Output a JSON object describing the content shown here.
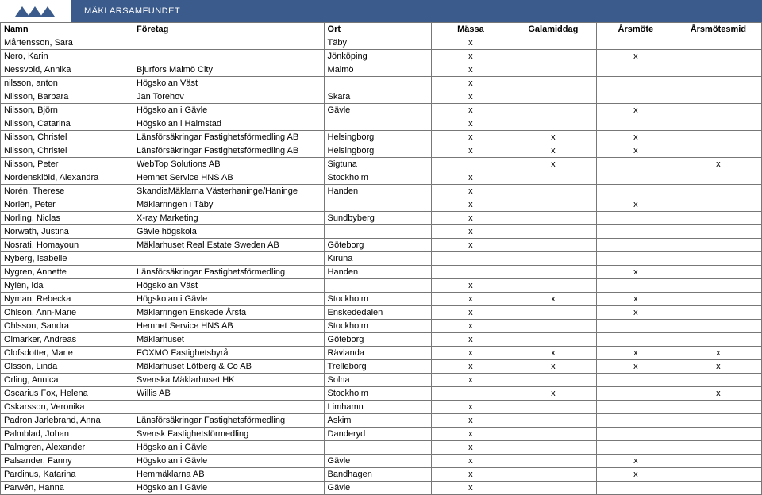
{
  "brand": "MÄKLARSAMFUNDET",
  "columns": [
    "Namn",
    "Företag",
    "Ort",
    "Mässa",
    "Galamiddag",
    "Årsmöte",
    "Årsmötesmid"
  ],
  "rows": [
    {
      "namn": "Mårtensson, Sara",
      "foretag": "",
      "ort": "Täby",
      "massa": "x",
      "gala": "",
      "arsmote": "",
      "arsmid": ""
    },
    {
      "namn": "Nero, Karin",
      "foretag": "",
      "ort": "Jönköping",
      "massa": "x",
      "gala": "",
      "arsmote": "x",
      "arsmid": ""
    },
    {
      "namn": "Nessvold, Annika",
      "foretag": "Bjurfors Malmö City",
      "ort": "Malmö",
      "massa": "x",
      "gala": "",
      "arsmote": "",
      "arsmid": ""
    },
    {
      "namn": "nilsson, anton",
      "foretag": "Högskolan Väst",
      "ort": "",
      "massa": "x",
      "gala": "",
      "arsmote": "",
      "arsmid": ""
    },
    {
      "namn": "Nilsson, Barbara",
      "foretag": "Jan Torehov",
      "ort": "Skara",
      "massa": "x",
      "gala": "",
      "arsmote": "",
      "arsmid": ""
    },
    {
      "namn": "Nilsson, Björn",
      "foretag": "Högskolan i Gävle",
      "ort": "Gävle",
      "massa": "x",
      "gala": "",
      "arsmote": "x",
      "arsmid": ""
    },
    {
      "namn": "Nilsson, Catarina",
      "foretag": "Högskolan i Halmstad",
      "ort": "",
      "massa": "x",
      "gala": "",
      "arsmote": "",
      "arsmid": ""
    },
    {
      "namn": "Nilsson, Christel",
      "foretag": "Länsförsäkringar Fastighetsförmedling AB",
      "ort": "Helsingborg",
      "massa": "x",
      "gala": "x",
      "arsmote": "x",
      "arsmid": ""
    },
    {
      "namn": "Nilsson, Christel",
      "foretag": "Länsförsäkringar Fastighetsförmedling AB",
      "ort": "Helsingborg",
      "massa": "x",
      "gala": "x",
      "arsmote": "x",
      "arsmid": ""
    },
    {
      "namn": "Nilsson, Peter",
      "foretag": "WebTop Solutions AB",
      "ort": "Sigtuna",
      "massa": "",
      "gala": "x",
      "arsmote": "",
      "arsmid": "x"
    },
    {
      "namn": "Nordenskiöld, Alexandra",
      "foretag": "Hemnet Service HNS AB",
      "ort": "Stockholm",
      "massa": "x",
      "gala": "",
      "arsmote": "",
      "arsmid": ""
    },
    {
      "namn": "Norén, Therese",
      "foretag": "SkandiaMäklarna Västerhaninge/Haninge",
      "ort": "Handen",
      "massa": "x",
      "gala": "",
      "arsmote": "",
      "arsmid": ""
    },
    {
      "namn": "Norlén, Peter",
      "foretag": "Mäklarringen i Täby",
      "ort": "",
      "massa": "x",
      "gala": "",
      "arsmote": "x",
      "arsmid": ""
    },
    {
      "namn": "Norling, Niclas",
      "foretag": "X-ray Marketing",
      "ort": "Sundbyberg",
      "massa": "x",
      "gala": "",
      "arsmote": "",
      "arsmid": ""
    },
    {
      "namn": "Norwath, Justina",
      "foretag": "Gävle högskola",
      "ort": "",
      "massa": "x",
      "gala": "",
      "arsmote": "",
      "arsmid": ""
    },
    {
      "namn": "Nosrati, Homayoun",
      "foretag": "Mäklarhuset Real Estate Sweden AB",
      "ort": "Göteborg",
      "massa": "x",
      "gala": "",
      "arsmote": "",
      "arsmid": ""
    },
    {
      "namn": "Nyberg, Isabelle",
      "foretag": "",
      "ort": "Kiruna",
      "massa": "",
      "gala": "",
      "arsmote": "",
      "arsmid": ""
    },
    {
      "namn": "Nygren, Annette",
      "foretag": "Länsförsäkringar Fastighetsförmedling",
      "ort": "Handen",
      "massa": "",
      "gala": "",
      "arsmote": "x",
      "arsmid": ""
    },
    {
      "namn": "Nylén, Ida",
      "foretag": "Högskolan Väst",
      "ort": "",
      "massa": "x",
      "gala": "",
      "arsmote": "",
      "arsmid": ""
    },
    {
      "namn": "Nyman, Rebecka",
      "foretag": "Högskolan i Gävle",
      "ort": "Stockholm",
      "massa": "x",
      "gala": "x",
      "arsmote": "x",
      "arsmid": ""
    },
    {
      "namn": "Ohlson, Ann-Marie",
      "foretag": "Mäklarringen Enskede Årsta",
      "ort": "Enskededalen",
      "massa": "x",
      "gala": "",
      "arsmote": "x",
      "arsmid": ""
    },
    {
      "namn": "Ohlsson, Sandra",
      "foretag": "Hemnet Service HNS AB",
      "ort": "Stockholm",
      "massa": "x",
      "gala": "",
      "arsmote": "",
      "arsmid": ""
    },
    {
      "namn": "Olmarker, Andreas",
      "foretag": "Mäklarhuset",
      "ort": "Göteborg",
      "massa": "x",
      "gala": "",
      "arsmote": "",
      "arsmid": ""
    },
    {
      "namn": "Olofsdotter, Marie",
      "foretag": "FOXMO Fastighetsbyrå",
      "ort": "Rävlanda",
      "massa": "x",
      "gala": "x",
      "arsmote": "x",
      "arsmid": "x"
    },
    {
      "namn": "Olsson, Linda",
      "foretag": "Mäklarhuset Löfberg & Co AB",
      "ort": "Trelleborg",
      "massa": "x",
      "gala": "x",
      "arsmote": "x",
      "arsmid": "x"
    },
    {
      "namn": "Orling, Annica",
      "foretag": "Svenska Mäklarhuset HK",
      "ort": "Solna",
      "massa": "x",
      "gala": "",
      "arsmote": "",
      "arsmid": ""
    },
    {
      "namn": "Oscarius Fox, Helena",
      "foretag": "Willis AB",
      "ort": "Stockholm",
      "massa": "",
      "gala": "x",
      "arsmote": "",
      "arsmid": "x"
    },
    {
      "namn": "Oskarsson, Veronika",
      "foretag": "",
      "ort": "Limhamn",
      "massa": "x",
      "gala": "",
      "arsmote": "",
      "arsmid": ""
    },
    {
      "namn": "Padron Jarlebrand, Anna",
      "foretag": "Länsförsäkringar Fastighetsförmedling",
      "ort": "Askim",
      "massa": "x",
      "gala": "",
      "arsmote": "",
      "arsmid": ""
    },
    {
      "namn": "Palmblad, Johan",
      "foretag": "Svensk Fastighetsförmedling",
      "ort": "Danderyd",
      "massa": "x",
      "gala": "",
      "arsmote": "",
      "arsmid": ""
    },
    {
      "namn": "Palmgren, Alexander",
      "foretag": "Högskolan i Gävle",
      "ort": "",
      "massa": "x",
      "gala": "",
      "arsmote": "",
      "arsmid": ""
    },
    {
      "namn": "Palsander, Fanny",
      "foretag": "Högskolan i Gävle",
      "ort": "Gävle",
      "massa": "x",
      "gala": "",
      "arsmote": "x",
      "arsmid": ""
    },
    {
      "namn": "Pardinus, Katarina",
      "foretag": "Hemmäklarna AB",
      "ort": "Bandhagen",
      "massa": "x",
      "gala": "",
      "arsmote": "x",
      "arsmid": ""
    },
    {
      "namn": "Parwén, Hanna",
      "foretag": "Högskolan i Gävle",
      "ort": "Gävle",
      "massa": "x",
      "gala": "",
      "arsmote": "",
      "arsmid": ""
    }
  ]
}
